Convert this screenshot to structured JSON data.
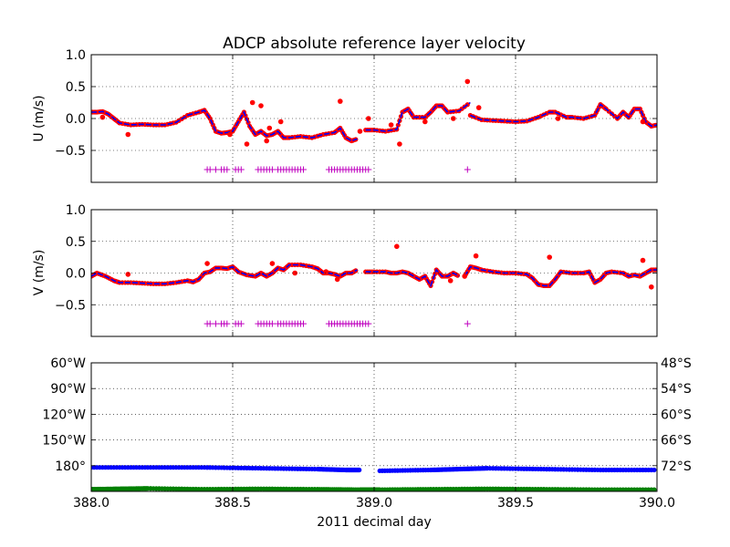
{
  "chart_data": [
    {
      "type": "line",
      "title": "ADCP absolute reference layer velocity",
      "ylabel": "U (m/s)",
      "xlim": [
        388.0,
        390.0
      ],
      "ylim": [
        -1.0,
        1.0
      ],
      "yticks": [
        1.0,
        0.5,
        0.0,
        -0.5
      ],
      "ytick_labels": [
        "1.0",
        "0.5",
        "0.0",
        "−0.5"
      ],
      "xticks": [
        388.0,
        388.5,
        389.0,
        389.5,
        390.0
      ],
      "grid": true,
      "marker_y": -0.8,
      "colors": {
        "smoothed": "#0000ff",
        "raw": "#ff0000",
        "markers": "#bf00bf"
      },
      "series": [
        {
          "style": "line",
          "x": [
            388.0,
            388.02,
            388.04,
            388.06,
            388.08,
            388.1,
            388.14,
            388.18,
            388.22,
            388.26,
            388.3,
            388.34,
            388.38,
            388.4,
            388.42,
            388.44,
            388.46,
            388.48,
            388.5,
            388.52,
            388.54,
            388.56,
            388.58,
            388.6,
            388.62,
            388.64,
            388.66,
            388.68,
            388.7,
            388.74,
            388.78,
            388.82,
            388.86,
            388.88,
            388.9,
            388.92,
            388.94
          ],
          "y": [
            0.1,
            0.1,
            0.11,
            0.07,
            0.0,
            -0.07,
            -0.1,
            -0.09,
            -0.1,
            -0.1,
            -0.06,
            0.05,
            0.1,
            0.13,
            0.0,
            -0.2,
            -0.23,
            -0.22,
            -0.2,
            -0.05,
            0.1,
            -0.12,
            -0.25,
            -0.2,
            -0.27,
            -0.25,
            -0.2,
            -0.3,
            -0.3,
            -0.28,
            -0.3,
            -0.25,
            -0.22,
            -0.15,
            -0.3,
            -0.35,
            -0.32
          ]
        },
        {
          "style": "line",
          "x": [
            388.97,
            389.0,
            389.04,
            389.08,
            389.1,
            389.12,
            389.14,
            389.18,
            389.2,
            389.22,
            389.24,
            389.26,
            389.3,
            389.34
          ],
          "y": [
            -0.18,
            -0.18,
            -0.2,
            -0.17,
            0.1,
            0.15,
            0.02,
            0.02,
            0.1,
            0.2,
            0.2,
            0.1,
            0.12,
            0.25
          ]
        },
        {
          "style": "line",
          "x": [
            389.34,
            389.38,
            389.42,
            389.46,
            389.5,
            389.54,
            389.58,
            389.62,
            389.64,
            389.68,
            389.7,
            389.74,
            389.78,
            389.8,
            389.82,
            389.86,
            389.88,
            389.9,
            389.92,
            389.94,
            389.96,
            389.98,
            390.0
          ],
          "y": [
            0.05,
            -0.02,
            -0.03,
            -0.04,
            -0.05,
            -0.04,
            0.02,
            0.1,
            0.1,
            0.02,
            0.02,
            0.0,
            0.05,
            0.22,
            0.15,
            0.0,
            0.1,
            0.02,
            0.15,
            0.15,
            -0.05,
            -0.12,
            -0.1
          ]
        },
        {
          "style": "points",
          "x": [
            388.04,
            388.13,
            388.49,
            388.55,
            388.57,
            388.6,
            388.62,
            388.63,
            388.67,
            388.88,
            388.95,
            388.98,
            389.06,
            389.09,
            389.18,
            389.28,
            389.33,
            389.37,
            389.65,
            389.95
          ],
          "y": [
            0.02,
            -0.25,
            -0.25,
            -0.4,
            0.25,
            0.2,
            -0.35,
            -0.15,
            -0.05,
            0.27,
            -0.2,
            0.0,
            -0.1,
            -0.4,
            -0.05,
            0.0,
            0.58,
            0.17,
            0.0,
            -0.05
          ]
        }
      ],
      "markers_x": [
        388.41,
        388.42,
        388.44,
        388.46,
        388.47,
        388.48,
        388.51,
        388.52,
        388.53,
        388.59,
        388.6,
        388.61,
        388.62,
        388.63,
        388.64,
        388.66,
        388.67,
        388.68,
        388.69,
        388.7,
        388.71,
        388.72,
        388.73,
        388.74,
        388.75,
        388.84,
        388.85,
        388.86,
        388.87,
        388.88,
        388.89,
        388.9,
        388.91,
        388.92,
        388.93,
        388.94,
        388.95,
        388.96,
        388.97,
        388.98,
        389.33
      ]
    },
    {
      "type": "line",
      "ylabel": "V (m/s)",
      "xlim": [
        388.0,
        390.0
      ],
      "ylim": [
        -1.0,
        1.0
      ],
      "yticks": [
        1.0,
        0.5,
        0.0,
        -0.5
      ],
      "ytick_labels": [
        "1.0",
        "0.5",
        "0.0",
        "−0.5"
      ],
      "xticks": [
        388.0,
        388.5,
        389.0,
        389.5,
        390.0
      ],
      "grid": true,
      "marker_y": -0.8,
      "colors": {
        "smoothed": "#0000ff",
        "raw": "#ff0000",
        "markers": "#bf00bf"
      },
      "series": [
        {
          "style": "line",
          "x": [
            388.0,
            388.02,
            388.05,
            388.08,
            388.1,
            388.14,
            388.18,
            388.22,
            388.26,
            388.3,
            388.34,
            388.36,
            388.38,
            388.4,
            388.42,
            388.44,
            388.46,
            388.48,
            388.5,
            388.52,
            388.55,
            388.58,
            388.6,
            388.62,
            388.64,
            388.66,
            388.68,
            388.7,
            388.74,
            388.78,
            388.8,
            388.82,
            388.84,
            388.86,
            388.88,
            388.9,
            388.92,
            388.94
          ],
          "y": [
            -0.05,
            0.0,
            -0.05,
            -0.12,
            -0.15,
            -0.15,
            -0.16,
            -0.17,
            -0.17,
            -0.15,
            -0.12,
            -0.14,
            -0.1,
            0.0,
            0.02,
            0.08,
            0.08,
            0.07,
            0.1,
            0.02,
            -0.03,
            -0.05,
            0.0,
            -0.05,
            0.0,
            0.08,
            0.05,
            0.13,
            0.13,
            0.1,
            0.07,
            0.0,
            0.0,
            -0.02,
            -0.05,
            0.0,
            0.0,
            0.05
          ]
        },
        {
          "style": "line",
          "x": [
            388.97,
            389.0,
            389.04,
            389.06,
            389.08,
            389.1,
            389.12,
            389.14,
            389.16,
            389.18,
            389.2,
            389.22,
            389.24,
            389.26,
            389.28,
            389.3
          ],
          "y": [
            0.02,
            0.02,
            0.02,
            0.0,
            0.0,
            0.02,
            0.0,
            -0.05,
            -0.1,
            -0.05,
            -0.2,
            0.05,
            -0.05,
            -0.05,
            0.0,
            -0.05
          ]
        },
        {
          "style": "line",
          "x": [
            389.32,
            389.34,
            389.36,
            389.38,
            389.42,
            389.46,
            389.5,
            389.54,
            389.56,
            389.58,
            389.6,
            389.62,
            389.64,
            389.66,
            389.7,
            389.74,
            389.76,
            389.78,
            389.8,
            389.82,
            389.84,
            389.88,
            389.9,
            389.92,
            389.94,
            389.96,
            389.98,
            390.0
          ],
          "y": [
            -0.05,
            0.1,
            0.08,
            0.05,
            0.02,
            0.0,
            0.0,
            -0.02,
            -0.08,
            -0.18,
            -0.2,
            -0.2,
            -0.1,
            0.02,
            0.0,
            0.0,
            0.02,
            -0.15,
            -0.1,
            0.0,
            0.02,
            0.0,
            -0.05,
            -0.03,
            -0.05,
            0.0,
            0.05,
            0.05
          ]
        },
        {
          "style": "points",
          "x": [
            388.13,
            388.41,
            388.64,
            388.72,
            388.83,
            388.87,
            389.08,
            389.27,
            389.32,
            389.36,
            389.62,
            389.95,
            389.98
          ],
          "y": [
            -0.02,
            0.15,
            0.15,
            0.0,
            0.02,
            -0.1,
            0.42,
            -0.12,
            -0.05,
            0.27,
            0.25,
            0.2,
            -0.22
          ]
        }
      ],
      "markers_x": [
        388.41,
        388.42,
        388.44,
        388.46,
        388.47,
        388.48,
        388.51,
        388.52,
        388.53,
        388.59,
        388.6,
        388.61,
        388.62,
        388.63,
        388.64,
        388.66,
        388.67,
        388.68,
        388.69,
        388.7,
        388.71,
        388.72,
        388.73,
        388.74,
        388.75,
        388.84,
        388.85,
        388.86,
        388.87,
        388.88,
        388.89,
        388.9,
        388.91,
        388.92,
        388.93,
        388.94,
        388.95,
        388.96,
        388.97,
        388.98,
        389.33
      ]
    },
    {
      "type": "scatter",
      "xlabel": "2011 decimal day",
      "xlim": [
        388.0,
        390.0
      ],
      "xticks": [
        388.0,
        388.5,
        389.0,
        389.5,
        390.0
      ],
      "xtick_labels": [
        "388.0",
        "388.5",
        "389.0",
        "389.5",
        "390.0"
      ],
      "grid": true,
      "left_axis": {
        "units": "degrees longitude (west positive)",
        "ylim": [
          60,
          210
        ],
        "inverted": true,
        "ticks": [
          60,
          90,
          120,
          150,
          180
        ],
        "tick_labels": [
          "60°W",
          "90°W",
          "120°W",
          "150°W",
          "180°"
        ],
        "color": "#0000ff"
      },
      "right_axis": {
        "units": "degrees latitude (south)",
        "ylim": [
          48,
          78
        ],
        "inverted": true,
        "ticks": [
          48,
          54,
          60,
          66,
          72
        ],
        "tick_labels": [
          "48°S",
          "54°S",
          "60°S",
          "66°S",
          "72°S"
        ],
        "color": "#008000"
      },
      "series": [
        {
          "axis": "left",
          "color": "#0000ff",
          "x": [
            388.0,
            388.2,
            388.4,
            388.6,
            388.8,
            388.9,
            388.95,
            388.98,
            389.02,
            389.2,
            389.3,
            389.4,
            389.6,
            389.8,
            390.0
          ],
          "y": [
            182,
            182,
            182,
            183,
            184,
            185,
            185,
            186,
            186,
            185,
            184,
            183,
            184,
            185,
            185
          ]
        },
        {
          "axis": "right",
          "color": "#008000",
          "x": [
            388.0,
            388.1,
            388.2,
            388.4,
            388.6,
            388.8,
            388.95,
            389.02,
            389.2,
            389.4,
            389.6,
            389.8,
            390.0
          ],
          "y": [
            77.5,
            77.4,
            77.3,
            77.5,
            77.4,
            77.5,
            77.6,
            77.6,
            77.5,
            77.4,
            77.5,
            77.6,
            77.6
          ]
        }
      ]
    }
  ]
}
